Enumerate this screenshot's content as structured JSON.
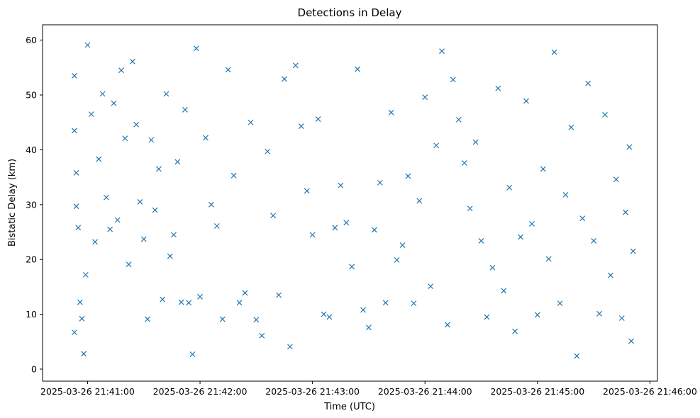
{
  "chart_data": {
    "type": "scatter",
    "title": "Detections in Delay",
    "xlabel": "Time (UTC)",
    "ylabel": "Bistatic Delay (km)",
    "marker": "x",
    "color": "#1f77b4",
    "xlim": [
      "2025-03-26 21:40:36",
      "2025-03-26 21:46:04"
    ],
    "ylim": [
      -2.2,
      62.8
    ],
    "xticks": [
      "2025-03-26 21:41:00",
      "2025-03-26 21:42:00",
      "2025-03-26 21:43:00",
      "2025-03-26 21:44:00",
      "2025-03-26 21:45:00",
      "2025-03-26 21:46:00"
    ],
    "yticks": [
      0,
      10,
      20,
      30,
      40,
      50,
      60
    ],
    "grid": false,
    "series": [
      {
        "x": [
          "2025-03-26 21:40:53",
          "2025-03-26 21:40:53",
          "2025-03-26 21:40:54",
          "2025-03-26 21:40:53",
          "2025-03-26 21:40:54",
          "2025-03-26 21:40:55",
          "2025-03-26 21:40:56",
          "2025-03-26 21:40:57",
          "2025-03-26 21:40:58",
          "2025-03-26 21:40:59",
          "2025-03-26 21:41:00",
          "2025-03-26 21:41:02",
          "2025-03-26 21:41:04",
          "2025-03-26 21:41:06",
          "2025-03-26 21:41:08",
          "2025-03-26 21:41:10",
          "2025-03-26 21:41:12",
          "2025-03-26 21:41:14",
          "2025-03-26 21:41:16",
          "2025-03-26 21:41:18",
          "2025-03-26 21:41:20",
          "2025-03-26 21:41:22",
          "2025-03-26 21:41:24",
          "2025-03-26 21:41:26",
          "2025-03-26 21:41:28",
          "2025-03-26 21:41:30",
          "2025-03-26 21:41:32",
          "2025-03-26 21:41:34",
          "2025-03-26 21:41:36",
          "2025-03-26 21:41:38",
          "2025-03-26 21:41:40",
          "2025-03-26 21:41:42",
          "2025-03-26 21:41:44",
          "2025-03-26 21:41:46",
          "2025-03-26 21:41:48",
          "2025-03-26 21:41:50",
          "2025-03-26 21:41:52",
          "2025-03-26 21:41:54",
          "2025-03-26 21:41:56",
          "2025-03-26 21:41:58",
          "2025-03-26 21:42:00",
          "2025-03-26 21:42:03",
          "2025-03-26 21:42:06",
          "2025-03-26 21:42:09",
          "2025-03-26 21:42:12",
          "2025-03-26 21:42:15",
          "2025-03-26 21:42:18",
          "2025-03-26 21:42:21",
          "2025-03-26 21:42:24",
          "2025-03-26 21:42:27",
          "2025-03-26 21:42:30",
          "2025-03-26 21:42:33",
          "2025-03-26 21:42:36",
          "2025-03-26 21:42:39",
          "2025-03-26 21:42:42",
          "2025-03-26 21:42:45",
          "2025-03-26 21:42:48",
          "2025-03-26 21:42:51",
          "2025-03-26 21:42:54",
          "2025-03-26 21:42:57",
          "2025-03-26 21:43:00",
          "2025-03-26 21:43:03",
          "2025-03-26 21:43:06",
          "2025-03-26 21:43:09",
          "2025-03-26 21:43:12",
          "2025-03-26 21:43:15",
          "2025-03-26 21:43:18",
          "2025-03-26 21:43:21",
          "2025-03-26 21:43:24",
          "2025-03-26 21:43:27",
          "2025-03-26 21:43:30",
          "2025-03-26 21:43:33",
          "2025-03-26 21:43:36",
          "2025-03-26 21:43:39",
          "2025-03-26 21:43:42",
          "2025-03-26 21:43:45",
          "2025-03-26 21:43:48",
          "2025-03-26 21:43:51",
          "2025-03-26 21:43:54",
          "2025-03-26 21:43:57",
          "2025-03-26 21:44:00",
          "2025-03-26 21:44:03",
          "2025-03-26 21:44:06",
          "2025-03-26 21:44:09",
          "2025-03-26 21:44:12",
          "2025-03-26 21:44:15",
          "2025-03-26 21:44:18",
          "2025-03-26 21:44:21",
          "2025-03-26 21:44:24",
          "2025-03-26 21:44:27",
          "2025-03-26 21:44:30",
          "2025-03-26 21:44:33",
          "2025-03-26 21:44:36",
          "2025-03-26 21:44:39",
          "2025-03-26 21:44:42",
          "2025-03-26 21:44:45",
          "2025-03-26 21:44:48",
          "2025-03-26 21:44:51",
          "2025-03-26 21:44:54",
          "2025-03-26 21:44:57",
          "2025-03-26 21:45:00",
          "2025-03-26 21:45:03",
          "2025-03-26 21:45:06",
          "2025-03-26 21:45:09",
          "2025-03-26 21:45:12",
          "2025-03-26 21:45:15",
          "2025-03-26 21:45:18",
          "2025-03-26 21:45:21",
          "2025-03-26 21:45:24",
          "2025-03-26 21:45:27",
          "2025-03-26 21:45:30",
          "2025-03-26 21:45:33",
          "2025-03-26 21:45:36",
          "2025-03-26 21:45:39",
          "2025-03-26 21:45:42",
          "2025-03-26 21:45:45",
          "2025-03-26 21:45:47",
          "2025-03-26 21:45:49",
          "2025-03-26 21:45:50",
          "2025-03-26 21:45:51"
        ],
        "y": [
          53.5,
          43.5,
          35.8,
          6.7,
          29.7,
          25.8,
          12.2,
          9.2,
          2.8,
          17.2,
          59.1,
          46.5,
          23.2,
          38.3,
          50.2,
          31.3,
          25.5,
          48.5,
          27.2,
          54.5,
          42.1,
          19.1,
          56.1,
          44.6,
          30.5,
          23.7,
          9.1,
          41.8,
          29.0,
          36.5,
          12.7,
          50.2,
          20.6,
          24.5,
          37.8,
          12.2,
          47.3,
          12.1,
          2.7,
          58.5,
          13.2,
          42.2,
          30.0,
          26.1,
          9.1,
          54.6,
          35.3,
          12.1,
          13.9,
          45.0,
          9.0,
          6.1,
          39.7,
          28.0,
          13.5,
          52.9,
          4.1,
          55.4,
          44.3,
          32.5,
          24.5,
          45.6,
          10.0,
          9.5,
          25.8,
          33.5,
          26.7,
          18.7,
          54.7,
          10.8,
          7.6,
          25.4,
          34.0,
          12.1,
          46.8,
          19.9,
          22.6,
          35.2,
          12.0,
          30.7,
          49.6,
          15.1,
          40.8,
          58.0,
          8.1,
          52.8,
          45.5,
          37.6,
          29.3,
          41.4,
          23.4,
          9.5,
          18.5,
          51.2,
          14.3,
          33.1,
          6.9,
          24.1,
          48.9,
          26.5,
          9.9,
          36.5,
          20.1,
          57.8,
          12.0,
          31.8,
          44.1,
          2.4,
          27.5,
          52.1,
          23.4,
          10.1,
          46.4,
          17.1,
          34.6,
          9.3,
          28.6,
          40.5,
          5.1,
          21.5
        ]
      }
    ]
  }
}
